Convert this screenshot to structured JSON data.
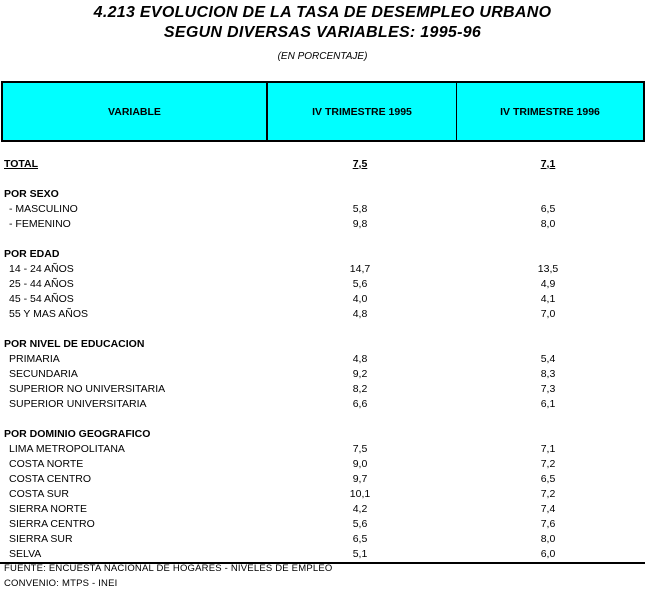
{
  "title_line1": "4.213    EVOLUCION DE LA TASA DE DESEMPLEO URBANO",
  "title_line2": "SEGUN DIVERSAS VARIABLES: 1995-96",
  "subtitle": "(EN PORCENTAJE)",
  "header": {
    "accent": "#00ffff",
    "columns": [
      "VARIABLE",
      "IV TRIMESTRE 1995",
      "IV TRIMESTRE 1996"
    ]
  },
  "rows": [
    {
      "type": "total",
      "label": "TOTAL",
      "v1995": "7,5",
      "v1996": "7,1"
    },
    {
      "type": "blank"
    },
    {
      "type": "group",
      "label": "POR SEXO"
    },
    {
      "type": "item",
      "label": "- MASCULINO",
      "v1995": "5,8",
      "v1996": "6,5"
    },
    {
      "type": "item",
      "label": "- FEMENINO",
      "v1995": "9,8",
      "v1996": "8,0"
    },
    {
      "type": "blank"
    },
    {
      "type": "group",
      "label": "POR EDAD"
    },
    {
      "type": "item",
      "label": "14 - 24 AÑOS",
      "v1995": "14,7",
      "v1996": "13,5"
    },
    {
      "type": "item",
      "label": "25 - 44 AÑOS",
      "v1995": "5,6",
      "v1996": "4,9"
    },
    {
      "type": "item",
      "label": "45 - 54 AÑOS",
      "v1995": "4,0",
      "v1996": "4,1"
    },
    {
      "type": "item",
      "label": "55 Y MAS AÑOS",
      "v1995": "4,8",
      "v1996": "7,0"
    },
    {
      "type": "blank"
    },
    {
      "type": "group",
      "label": "POR NIVEL DE EDUCACION"
    },
    {
      "type": "item",
      "label": "PRIMARIA",
      "v1995": "4,8",
      "v1996": "5,4"
    },
    {
      "type": "item",
      "label": "SECUNDARIA",
      "v1995": "9,2",
      "v1996": "8,3"
    },
    {
      "type": "item",
      "label": "SUPERIOR NO UNIVERSITARIA",
      "v1995": "8,2",
      "v1996": "7,3"
    },
    {
      "type": "item",
      "label": "SUPERIOR UNIVERSITARIA",
      "v1995": "6,6",
      "v1996": "6,1"
    },
    {
      "type": "blank"
    },
    {
      "type": "group",
      "label": "POR DOMINIO GEOGRAFICO"
    },
    {
      "type": "item",
      "label": "LIMA METROPOLITANA",
      "v1995": "7,5",
      "v1996": "7,1"
    },
    {
      "type": "item",
      "label": "COSTA NORTE",
      "v1995": "9,0",
      "v1996": "7,2"
    },
    {
      "type": "item",
      "label": "COSTA CENTRO",
      "v1995": "9,7",
      "v1996": "6,5"
    },
    {
      "type": "item",
      "label": "COSTA SUR",
      "v1995": "10,1",
      "v1996": "7,2"
    },
    {
      "type": "item",
      "label": "SIERRA NORTE",
      "v1995": "4,2",
      "v1996": "7,4"
    },
    {
      "type": "item",
      "label": "SIERRA CENTRO",
      "v1995": "5,6",
      "v1996": "7,6"
    },
    {
      "type": "item",
      "label": "SIERRA SUR",
      "v1995": "6,5",
      "v1996": "8,0"
    },
    {
      "type": "item",
      "label": "SELVA",
      "v1995": "5,1",
      "v1996": "6,0"
    }
  ],
  "footer": {
    "source": "FUENTE: ENCUESTA NACIONAL DE HOGARES - NIVELES DE EMPLEO",
    "agreement": "CONVENIO: MTPS - INEI"
  }
}
